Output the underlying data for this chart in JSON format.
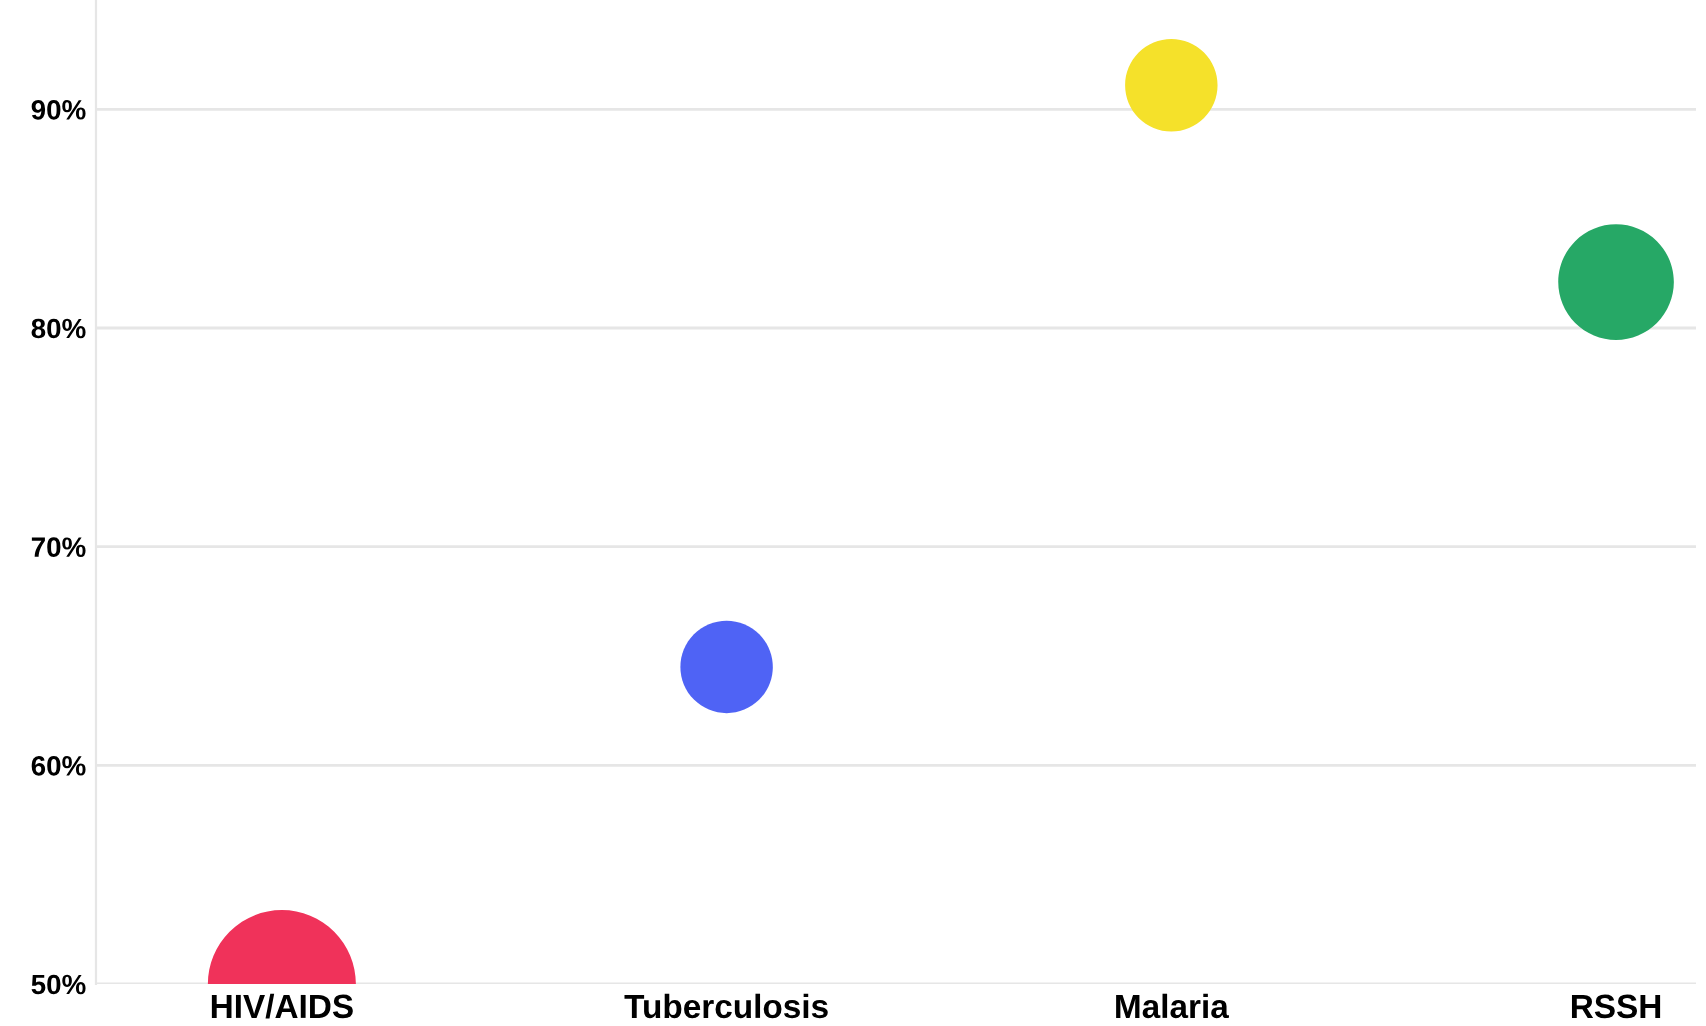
{
  "chart_data": {
    "type": "bubble",
    "categories": [
      "HIV/AIDS",
      "Tuberculosis",
      "Malaria",
      "RSSH"
    ],
    "values": [
      50,
      64.5,
      91.1,
      82.1
    ],
    "sizes": [
      1,
      0.39,
      0.39,
      0.61
    ],
    "colors": [
      "#f0325a",
      "#4f63f5",
      "#f5e12a",
      "#26a866"
    ],
    "ylim": [
      50,
      95
    ],
    "yticks": [
      {
        "value": 50,
        "label": "50%"
      },
      {
        "value": 60,
        "label": "60%"
      },
      {
        "value": 70,
        "label": "70%"
      },
      {
        "value": 80,
        "label": "80%"
      },
      {
        "value": 90,
        "label": "90%"
      }
    ],
    "grid": "y"
  }
}
